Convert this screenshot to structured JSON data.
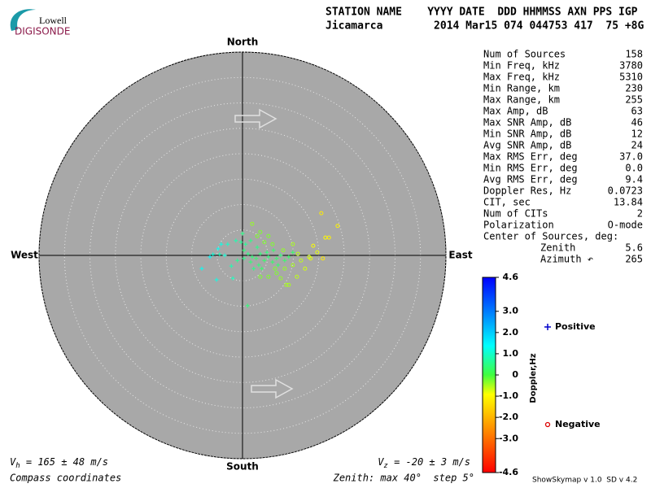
{
  "logo": {
    "top": "Lowell",
    "bottom": "DIGISONDE"
  },
  "header": {
    "columns": "STATION NAME    YYYY DATE  DDD HHMMSS AXN PPS IGP",
    "values": "Jicamarca        2014 Mar15 074 044753 417  75 +8G"
  },
  "chart_data": {
    "type": "skymap",
    "directions": {
      "north": "North",
      "south": "South",
      "east": "East",
      "west": "West"
    },
    "rlim": [
      0,
      40
    ],
    "rticks": [
      5,
      10,
      15,
      20,
      25,
      30,
      35,
      40
    ],
    "series": [
      {
        "name": "Positive",
        "marker": "plus",
        "color": "#0000cc",
        "x": [
          0,
          -0.3,
          -1.3,
          -2.9,
          -4.2,
          -4.8,
          -5.8,
          -6.4,
          -4.5,
          -8.0,
          -5.1,
          -2.2,
          -1.0,
          0.3,
          1.1,
          1.9,
          2.7,
          3.5,
          4.3,
          5.1,
          5.9,
          6.7,
          7.5,
          8.3,
          3.2,
          2.2,
          1.0,
          -1.9,
          -3.5,
          0.3,
          1.6,
          3.8,
          4.8,
          2.9,
          6.1,
          7.0,
          9.1,
          9.9,
          0.6,
          1.6
        ],
        "y": [
          4.3,
          2.6,
          2.9,
          2.2,
          2.2,
          1.3,
          0.2,
          -0.3,
          0.2,
          -2.6,
          -4.8,
          -2.1,
          -1.0,
          1.0,
          0.3,
          -0.3,
          -0.6,
          0.3,
          -1.0,
          -0.3,
          -1.3,
          -0.6,
          0,
          -1.0,
          -1.9,
          -2.6,
          -9.9,
          -4.5,
          0,
          -0.6,
          -1.3,
          -2.6,
          0.6,
          1.6,
          1.0,
          -1.9,
          -0.3,
          0.6,
          2.2,
          2.9
        ],
        "doppler": [
          0.5,
          0.6,
          0.8,
          1.0,
          1.2,
          1.3,
          1.1,
          1.4,
          0.9,
          1.3,
          1.2,
          0.8,
          0.6,
          0.4,
          0.5,
          0.4,
          0.3,
          0.4,
          0.3,
          0.4,
          0.3,
          0.3,
          0.4,
          0.3,
          0.4,
          0.5,
          0.4,
          0.9,
          1.1,
          0.5,
          0.4,
          0.3,
          0.4,
          0.5,
          0.3,
          0.3,
          0.3,
          0.3,
          0.6,
          0.5
        ]
      },
      {
        "name": "Negative",
        "marker": "circle",
        "color": "#dd0000",
        "x": [
          1.9,
          3.5,
          5.1,
          15.5,
          18.7,
          16.3,
          13.9,
          15.8,
          13.1,
          11.5,
          9.9,
          8.3,
          6.7,
          5.1,
          7.5,
          9.1,
          10.7,
          12.3,
          4.3,
          5.9,
          2.9,
          14.7,
          9.9,
          8.0,
          6.4,
          3.5,
          13.4,
          17.0,
          10.9,
          8.6
        ],
        "y": [
          6.2,
          4.6,
          3.8,
          8.3,
          5.8,
          3.5,
          1.9,
          -0.6,
          -0.3,
          -1.0,
          -1.9,
          -2.6,
          -3.5,
          -4.2,
          -4.5,
          -5.8,
          -4.2,
          -2.6,
          2.6,
          2.2,
          3.8,
          0.6,
          2.2,
          1.0,
          -2.6,
          -4.2,
          -0.6,
          3.5,
          0.3,
          -5.8
        ],
        "doppler": [
          -0.4,
          -0.3,
          -0.3,
          -1.2,
          -1.1,
          -1.0,
          -0.9,
          -1.2,
          -0.7,
          -0.6,
          -0.5,
          -0.4,
          -0.3,
          -0.3,
          -0.4,
          -0.5,
          -0.6,
          -0.7,
          -0.3,
          -0.3,
          -0.3,
          -0.8,
          -0.5,
          -0.4,
          -0.3,
          -0.3,
          -0.8,
          -1.1,
          -0.6,
          -0.5
        ]
      }
    ],
    "colorbar": {
      "label": "Doppler,Hz",
      "lim": [
        -4.6,
        4.6
      ],
      "ticks": [
        4.6,
        {
          "value": 3,
          "label": "3.0"
        },
        {
          "value": 2,
          "label": "2.0"
        },
        {
          "value": 1,
          "label": "1.0"
        },
        0,
        {
          "value": -1,
          "label": "-1.0"
        },
        {
          "value": -2,
          "label": "-2.0"
        },
        {
          "value": -3,
          "label": "-3.0"
        },
        -4.6
      ]
    }
  },
  "stats": {
    "rows": [
      [
        "Num of Sources",
        "158"
      ],
      [
        "Min Freq, kHz",
        "3780"
      ],
      [
        "Max Freq, kHz",
        "5310"
      ],
      [
        "Min Range, km",
        "230"
      ],
      [
        "Max Range, km",
        "255"
      ],
      [
        "Max Amp, dB",
        "63"
      ],
      [
        "Max SNR Amp, dB",
        "46"
      ],
      [
        "Min SNR Amp, dB",
        "12"
      ],
      [
        "Avg SNR Amp, dB",
        "24"
      ],
      [
        "Max RMS Err, deg",
        "37.0"
      ],
      [
        "Min RMS Err, deg",
        "0.0"
      ],
      [
        "Avg RMS Err, deg",
        "9.4"
      ],
      [
        "Doppler Res, Hz",
        "0.0723"
      ],
      [
        "CIT, sec",
        "13.84"
      ],
      [
        "Num of CITs",
        "2"
      ],
      [
        "Polarization",
        "O-mode"
      ]
    ],
    "center_title": "Center of Sources, deg:",
    "center_rows": [
      [
        "Zenith",
        "5.6"
      ],
      [
        "Azimuth ↶",
        "265"
      ]
    ]
  },
  "footer": {
    "vh": {
      "symbol": "V",
      "sub": "h",
      "text": " = 165 ± 48 m/s"
    },
    "vz": {
      "symbol": "V",
      "sub": "z",
      "text": " = -20 ± 3 m/s"
    },
    "coordinates": "Compass coordinates",
    "zenith": "Zenith: max 40°  step 5°",
    "version": "ShowSkymap v 1.0  SD v 4.2"
  }
}
